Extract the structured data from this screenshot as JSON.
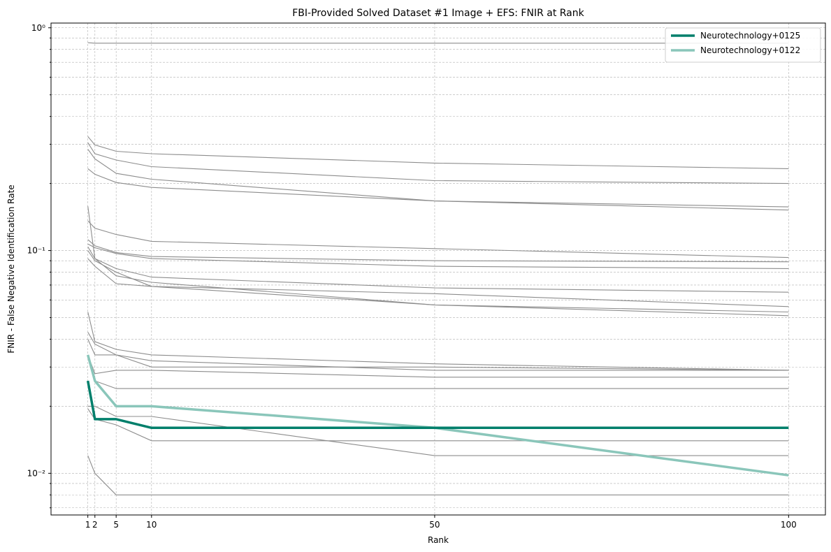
{
  "chart_data": {
    "type": "line",
    "title": "FBI-Provided Solved Dataset #1 Image + EFS: FNIR at Rank",
    "xlabel": "Rank",
    "ylabel": "FNIR - False Negative Identification Rate",
    "y_scale": "log",
    "ylim": [
      0.0065,
      1.05
    ],
    "xlim": [
      -4.2,
      105.2
    ],
    "x_ticks": [
      1,
      2,
      5,
      10,
      50,
      100
    ],
    "y_major_ticks": [
      0.01,
      0.1,
      1
    ],
    "y_major_tick_labels": [
      "10⁻²",
      "10⁻¹",
      "10⁰"
    ],
    "grid": true,
    "legend_position": "top-right",
    "x": [
      1,
      2,
      5,
      10,
      50,
      100
    ],
    "background_color": "#8c8c8c",
    "background_series": [
      {
        "values": [
          0.857,
          0.853,
          0.853,
          0.853,
          0.853,
          0.853
        ]
      },
      {
        "values": [
          0.325,
          0.298,
          0.279,
          0.272,
          0.247,
          0.233
        ]
      },
      {
        "values": [
          0.305,
          0.272,
          0.255,
          0.238,
          0.206,
          0.2
        ]
      },
      {
        "values": [
          0.285,
          0.258,
          0.222,
          0.209,
          0.167,
          0.157
        ]
      },
      {
        "values": [
          0.233,
          0.22,
          0.202,
          0.192,
          0.167,
          0.152
        ]
      },
      {
        "values": [
          0.158,
          0.092,
          0.077,
          0.072,
          0.057,
          0.051
        ]
      },
      {
        "values": [
          0.136,
          0.126,
          0.118,
          0.11,
          0.102,
          0.093
        ]
      },
      {
        "values": [
          0.112,
          0.105,
          0.098,
          0.094,
          0.09,
          0.089
        ]
      },
      {
        "values": [
          0.107,
          0.103,
          0.097,
          0.092,
          0.085,
          0.083
        ]
      },
      {
        "values": [
          0.104,
          0.092,
          0.083,
          0.076,
          0.068,
          0.065
        ]
      },
      {
        "values": [
          0.1,
          0.09,
          0.08,
          0.069,
          0.057,
          0.053
        ]
      },
      {
        "values": [
          0.092,
          0.085,
          0.071,
          0.069,
          0.064,
          0.056
        ]
      },
      {
        "values": [
          0.053,
          0.039,
          0.036,
          0.034,
          0.031,
          0.029
        ]
      },
      {
        "values": [
          0.043,
          0.038,
          0.034,
          0.032,
          0.029,
          0.029
        ]
      },
      {
        "values": [
          0.04,
          0.034,
          0.034,
          0.03,
          0.03,
          0.029
        ]
      },
      {
        "values": [
          0.034,
          0.028,
          0.029,
          0.029,
          0.027,
          0.027
        ]
      },
      {
        "values": [
          0.034,
          0.026,
          0.024,
          0.024,
          0.024,
          0.024
        ]
      },
      {
        "values": [
          0.02,
          0.02,
          0.018,
          0.018,
          0.012,
          0.012
        ]
      },
      {
        "values": [
          0.0195,
          0.0175,
          0.0165,
          0.014,
          0.014,
          0.014
        ]
      },
      {
        "values": [
          0.012,
          0.01,
          0.008,
          0.008,
          0.008,
          0.008
        ]
      }
    ],
    "series": [
      {
        "name": "Neurotechnology+0125",
        "color": "#007f6b",
        "values": [
          0.026,
          0.0175,
          0.0175,
          0.016,
          0.016,
          0.016
        ]
      },
      {
        "name": "Neurotechnology+0122",
        "color": "#8ac6ba",
        "values": [
          0.034,
          0.026,
          0.02,
          0.02,
          0.016,
          0.0098
        ]
      }
    ]
  }
}
